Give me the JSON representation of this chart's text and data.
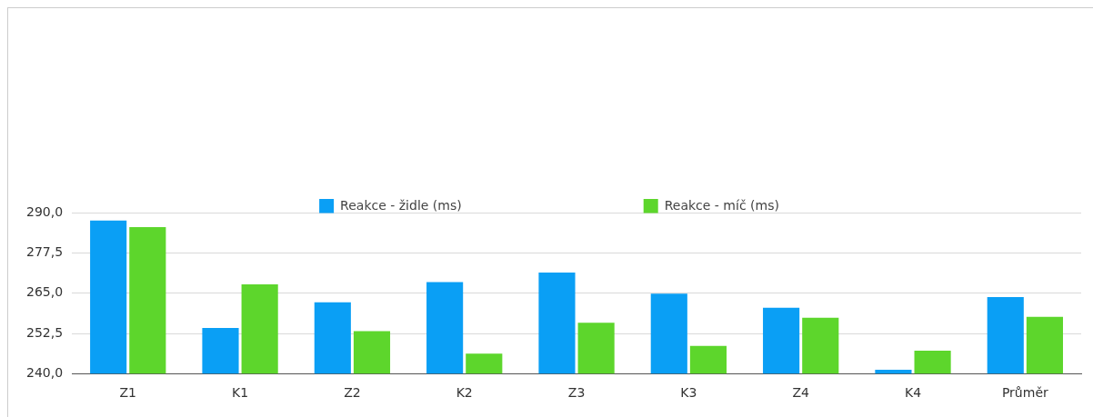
{
  "chart_data": {
    "type": "bar",
    "categories": [
      "Z1",
      "K1",
      "Z2",
      "K2",
      "Z3",
      "K3",
      "Z4",
      "K4",
      "Průměr"
    ],
    "series": [
      {
        "name": "Reakce - židle (ms)",
        "color": "#0a9ff5",
        "values": [
          287.7,
          254.2,
          262.2,
          268.5,
          271.5,
          264.9,
          260.5,
          241.2,
          263.8
        ]
      },
      {
        "name": "Reakce - míč (ms)",
        "color": "#5dd62c",
        "values": [
          285.6,
          267.8,
          253.2,
          246.2,
          255.8,
          248.6,
          257.4,
          247.1,
          257.7
        ]
      }
    ],
    "ylim": [
      240,
      290
    ],
    "yticks": [
      {
        "value": 240,
        "label": "240,0"
      },
      {
        "value": 252.5,
        "label": "252,5"
      },
      {
        "value": 265,
        "label": "265,0"
      },
      {
        "value": 277.5,
        "label": "277,5"
      },
      {
        "value": 290,
        "label": "290,0"
      }
    ],
    "grid": "y",
    "legend": "top"
  }
}
